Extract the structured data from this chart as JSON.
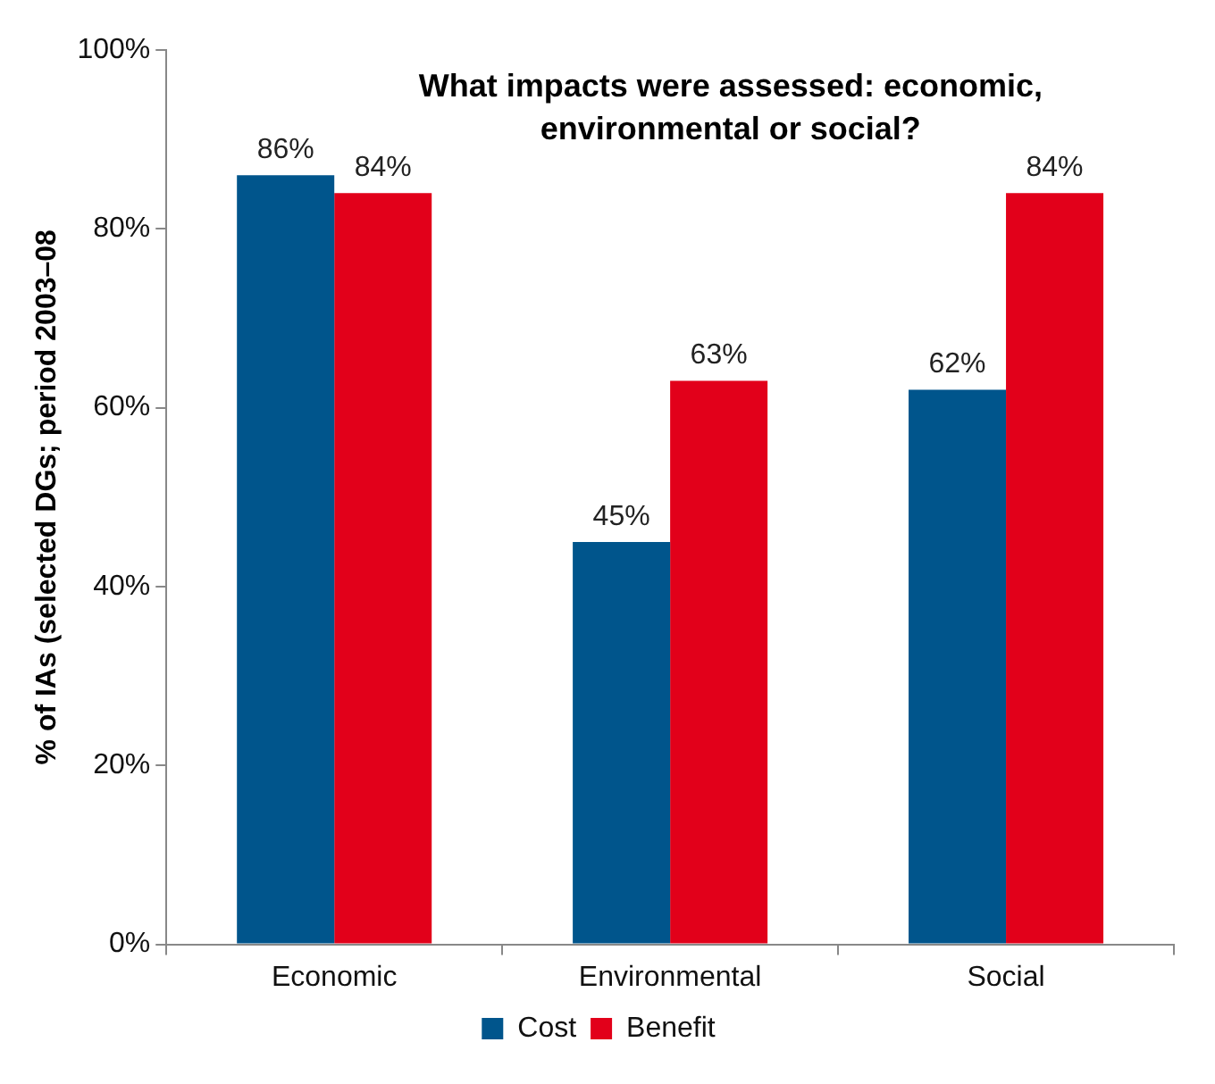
{
  "chart_data": {
    "type": "bar",
    "title": "What impacts were assessed: economic, environmental or social?",
    "ylabel": "% of IAs (selected DGs; period 2003–08",
    "categories": [
      "Economic",
      "Environmental",
      "Social"
    ],
    "series": [
      {
        "name": "Cost",
        "color": "#00558c",
        "values": [
          86,
          45,
          62
        ],
        "value_labels": [
          "86%",
          "45%",
          "62%"
        ]
      },
      {
        "name": "Benefit",
        "color": "#e2001a",
        "values": [
          84,
          63,
          84
        ],
        "value_labels": [
          "84%",
          "63%",
          "84%"
        ]
      }
    ],
    "ylim": [
      0,
      100
    ],
    "yticks": [
      {
        "value": 0,
        "label": "0%"
      },
      {
        "value": 20,
        "label": "20%"
      },
      {
        "value": 40,
        "label": "40%"
      },
      {
        "value": 60,
        "label": "60%"
      },
      {
        "value": 80,
        "label": "80%"
      },
      {
        "value": 100,
        "label": "100%"
      }
    ],
    "grid": false,
    "legend": "bottom"
  }
}
